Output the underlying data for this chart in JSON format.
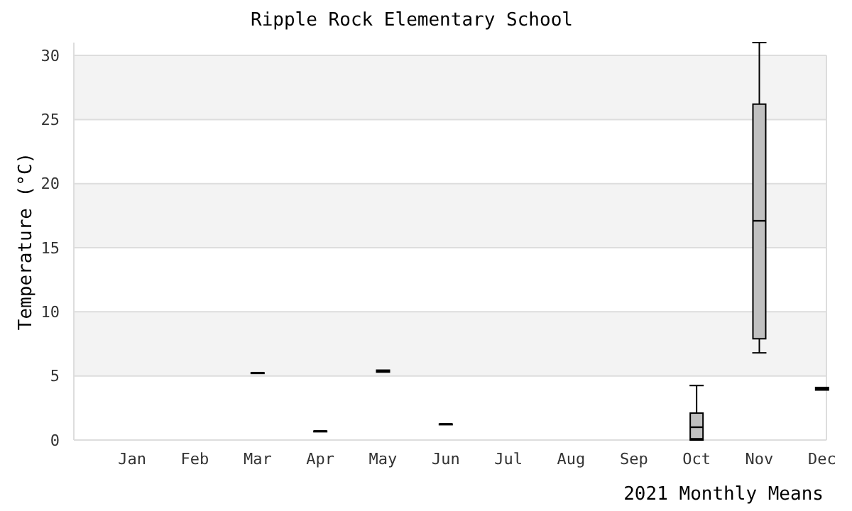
{
  "chart_data": {
    "type": "box",
    "title": "Ripple Rock Elementary School",
    "xlabel": "2021 Monthly Means",
    "ylabel": "Temperature (°C)",
    "categories": [
      "Jan",
      "Feb",
      "Mar",
      "Apr",
      "May",
      "Jun",
      "Jul",
      "Aug",
      "Sep",
      "Oct",
      "Nov",
      "Dec"
    ],
    "boxes": [
      null,
      null,
      {
        "low": 5.25,
        "q1": 5.25,
        "median": 5.25,
        "q3": 5.25,
        "high": 5.25
      },
      {
        "low": 0.7,
        "q1": 0.7,
        "median": 0.7,
        "q3": 0.7,
        "high": 0.7
      },
      {
        "low": 5.3,
        "q1": 5.3,
        "median": 5.35,
        "q3": 5.45,
        "high": 5.45
      },
      {
        "low": 1.25,
        "q1": 1.25,
        "median": 1.25,
        "q3": 1.25,
        "high": 1.25
      },
      null,
      null,
      null,
      {
        "low": 0,
        "q1": 0.1,
        "median": 1,
        "q3": 2.1,
        "high": 4.25
      },
      {
        "low": 6.8,
        "q1": 7.9,
        "median": 17.1,
        "q3": 26.2,
        "high": 31
      },
      {
        "low": 3.9,
        "q1": 3.9,
        "median": 4,
        "q3": 4.1,
        "high": 4.1
      }
    ],
    "color": "#c0c0c0",
    "ylim": [
      0,
      31
    ],
    "yticks": [
      0,
      5,
      10,
      15,
      20,
      25,
      30
    ],
    "grid": true
  }
}
